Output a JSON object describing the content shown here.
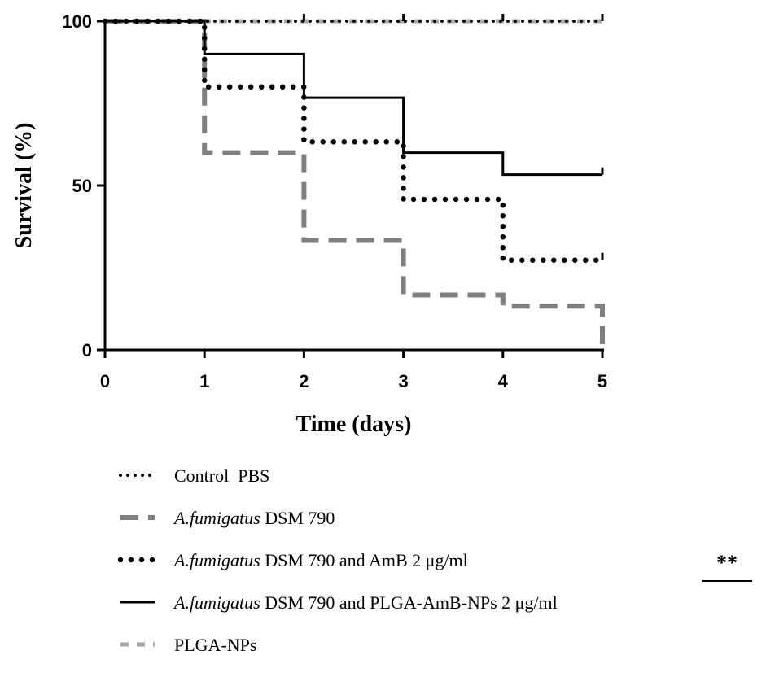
{
  "chart_data": {
    "type": "line",
    "subtype": "kaplan-meier-step",
    "xlabel": "Time (days)",
    "ylabel": "Survival (%)",
    "xlim": [
      0,
      5
    ],
    "ylim": [
      0,
      100
    ],
    "xticks": [
      "0",
      "1",
      "2",
      "3",
      "4",
      "5"
    ],
    "yticks": [
      "0",
      "50",
      "100"
    ],
    "grid": false,
    "legend_position": "bottom",
    "series": [
      {
        "legend": {
          "italic": "",
          "text": "Control  PBS"
        },
        "style": "dotted-black",
        "color": "#000000",
        "steps": [
          [
            0,
            100
          ],
          [
            5,
            100
          ]
        ],
        "censor_x": [
          2,
          3,
          4,
          5
        ]
      },
      {
        "legend": {
          "italic": "A.fumigatus",
          "text": " DSM 790"
        },
        "style": "dashed-gray",
        "color": "#808080",
        "steps": [
          [
            0,
            100
          ],
          [
            1,
            60
          ],
          [
            2,
            33.3
          ],
          [
            3,
            16.7
          ],
          [
            4,
            13.3
          ],
          [
            5,
            0
          ]
        ],
        "censor_x": []
      },
      {
        "legend": {
          "italic": "A.fumigatus",
          "text": " DSM 790 and AmB 2 μg/ml"
        },
        "style": "dotted-heavy-black",
        "color": "#000000",
        "steps": [
          [
            0,
            100
          ],
          [
            1,
            80
          ],
          [
            2,
            63.3
          ],
          [
            3,
            45.8
          ],
          [
            4,
            27.3
          ],
          [
            5,
            27.3
          ]
        ],
        "censor_x": [
          5
        ]
      },
      {
        "legend": {
          "italic": "A.fumigatus",
          "text": " DSM 790 and PLGA-AmB-NPs 2 μg/ml"
        },
        "style": "solid-black",
        "color": "#000000",
        "steps": [
          [
            0,
            100
          ],
          [
            1,
            90
          ],
          [
            2,
            76.7
          ],
          [
            3,
            60
          ],
          [
            4,
            53.3
          ],
          [
            5,
            53.3
          ]
        ],
        "censor_x": [
          5
        ]
      },
      {
        "legend": {
          "italic": "",
          "text": "PLGA-NPs"
        },
        "style": "dashed-light-gray",
        "color": "#a0a0a0",
        "steps": [
          [
            0,
            100
          ],
          [
            5,
            100
          ]
        ],
        "censor_x": []
      }
    ],
    "annotations": [
      {
        "text": "**",
        "applies_to": "A.fumigatus DSM 790 and AmB 2 μg/ml"
      }
    ]
  }
}
